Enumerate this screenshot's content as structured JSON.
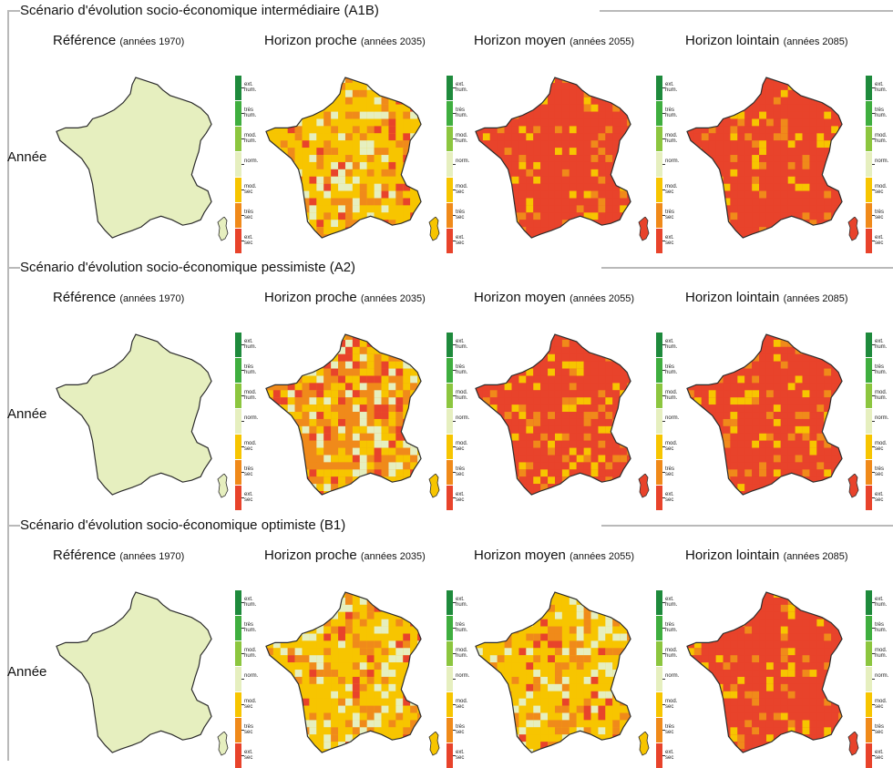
{
  "legend": {
    "labels": [
      "ext.\nhum.",
      "très\nhum.",
      "mod.\nhum.",
      "norm.",
      "mod.\nsec",
      "très\nsec",
      "ext.\nsec"
    ],
    "colors": [
      "#1e8a3c",
      "#3fae3f",
      "#8cc63f",
      "#e6efbf",
      "#f7c500",
      "#f08a1a",
      "#e8432b"
    ]
  },
  "map_colors": {
    "norm": "#e6efbf",
    "mod_sec": "#f7c500",
    "tres_sec": "#f08a1a",
    "ext_sec": "#e8432b",
    "outline": "#2b2b2b"
  },
  "scenarios": [
    {
      "title": "Scénario d'évolution socio-économique intermédiaire (A1B)",
      "row_label": "Année",
      "columns": [
        {
          "name": "Référence",
          "period": "(années 1970)",
          "dominant": "norm"
        },
        {
          "name": "Horizon proche",
          "period": "(années 2035)",
          "dominant": "mod_sec"
        },
        {
          "name": "Horizon moyen",
          "period": "(années 2055)",
          "dominant": "ext_sec"
        },
        {
          "name": "Horizon lointain",
          "period": "(années 2085)",
          "dominant": "ext_sec"
        }
      ]
    },
    {
      "title": "Scénario d'évolution socio-économique pessimiste (A2)",
      "row_label": "Année",
      "columns": [
        {
          "name": "Référence",
          "period": "(années 1970)",
          "dominant": "norm"
        },
        {
          "name": "Horizon proche",
          "period": "(années 2035)",
          "dominant": "tres_sec"
        },
        {
          "name": "Horizon moyen",
          "period": "(années 2055)",
          "dominant": "ext_sec"
        },
        {
          "name": "Horizon lointain",
          "period": "(années 2085)",
          "dominant": "ext_sec"
        }
      ]
    },
    {
      "title": "Scénario d'évolution socio-économique optimiste (B1)",
      "row_label": "Année",
      "columns": [
        {
          "name": "Référence",
          "period": "(années 1970)",
          "dominant": "norm"
        },
        {
          "name": "Horizon proche",
          "period": "(années 2035)",
          "dominant": "mod_sec"
        },
        {
          "name": "Horizon moyen",
          "period": "(années 2055)",
          "dominant": "mod_sec"
        },
        {
          "name": "Horizon lointain",
          "period": "(années 2085)",
          "dominant": "ext_sec"
        }
      ]
    }
  ]
}
